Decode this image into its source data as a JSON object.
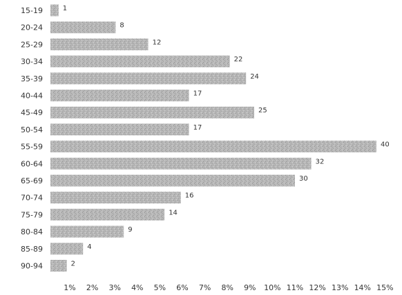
{
  "chart_data": {
    "type": "bar",
    "orientation": "horizontal",
    "categories": [
      "15-19",
      "20-24",
      "25-29",
      "30-34",
      "35-39",
      "40-44",
      "45-49",
      "50-54",
      "55-59",
      "60-64",
      "65-69",
      "70-74",
      "75-79",
      "80-84",
      "85-89",
      "90-94"
    ],
    "values": [
      1,
      8,
      12,
      22,
      24,
      17,
      25,
      17,
      40,
      32,
      30,
      16,
      14,
      9,
      4,
      2
    ],
    "x_ticks": [
      "1%",
      "2%",
      "3%",
      "4%",
      "5%",
      "6%",
      "7%",
      "8%",
      "9%",
      "10%",
      "11%",
      "12%",
      "13%",
      "14%",
      "15%"
    ],
    "xlim": [
      0,
      40
    ],
    "grid": false,
    "legend": "none",
    "bar_color": "#b3b3b3",
    "text_color": "#333333"
  }
}
